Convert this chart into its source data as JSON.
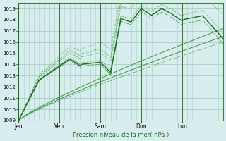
{
  "title": "",
  "xlabel": "Pression niveau de la mer( hPa )",
  "ylabel": "",
  "ylim": [
    1009,
    1019.5
  ],
  "yticks": [
    1009,
    1010,
    1011,
    1012,
    1013,
    1014,
    1015,
    1016,
    1017,
    1018,
    1019
  ],
  "day_labels": [
    "Jeu",
    "Ven",
    "Sam",
    "Dim",
    "Lun"
  ],
  "day_positions": [
    0,
    24,
    48,
    72,
    96
  ],
  "bg_color": "#d8eeee",
  "grid_color": "#aacccc",
  "line_color_dark": "#1a6b1a",
  "line_color_mid": "#2d8b2d",
  "line_color_light": "#4aaa4a",
  "total_hours": 120,
  "n_points": 121
}
